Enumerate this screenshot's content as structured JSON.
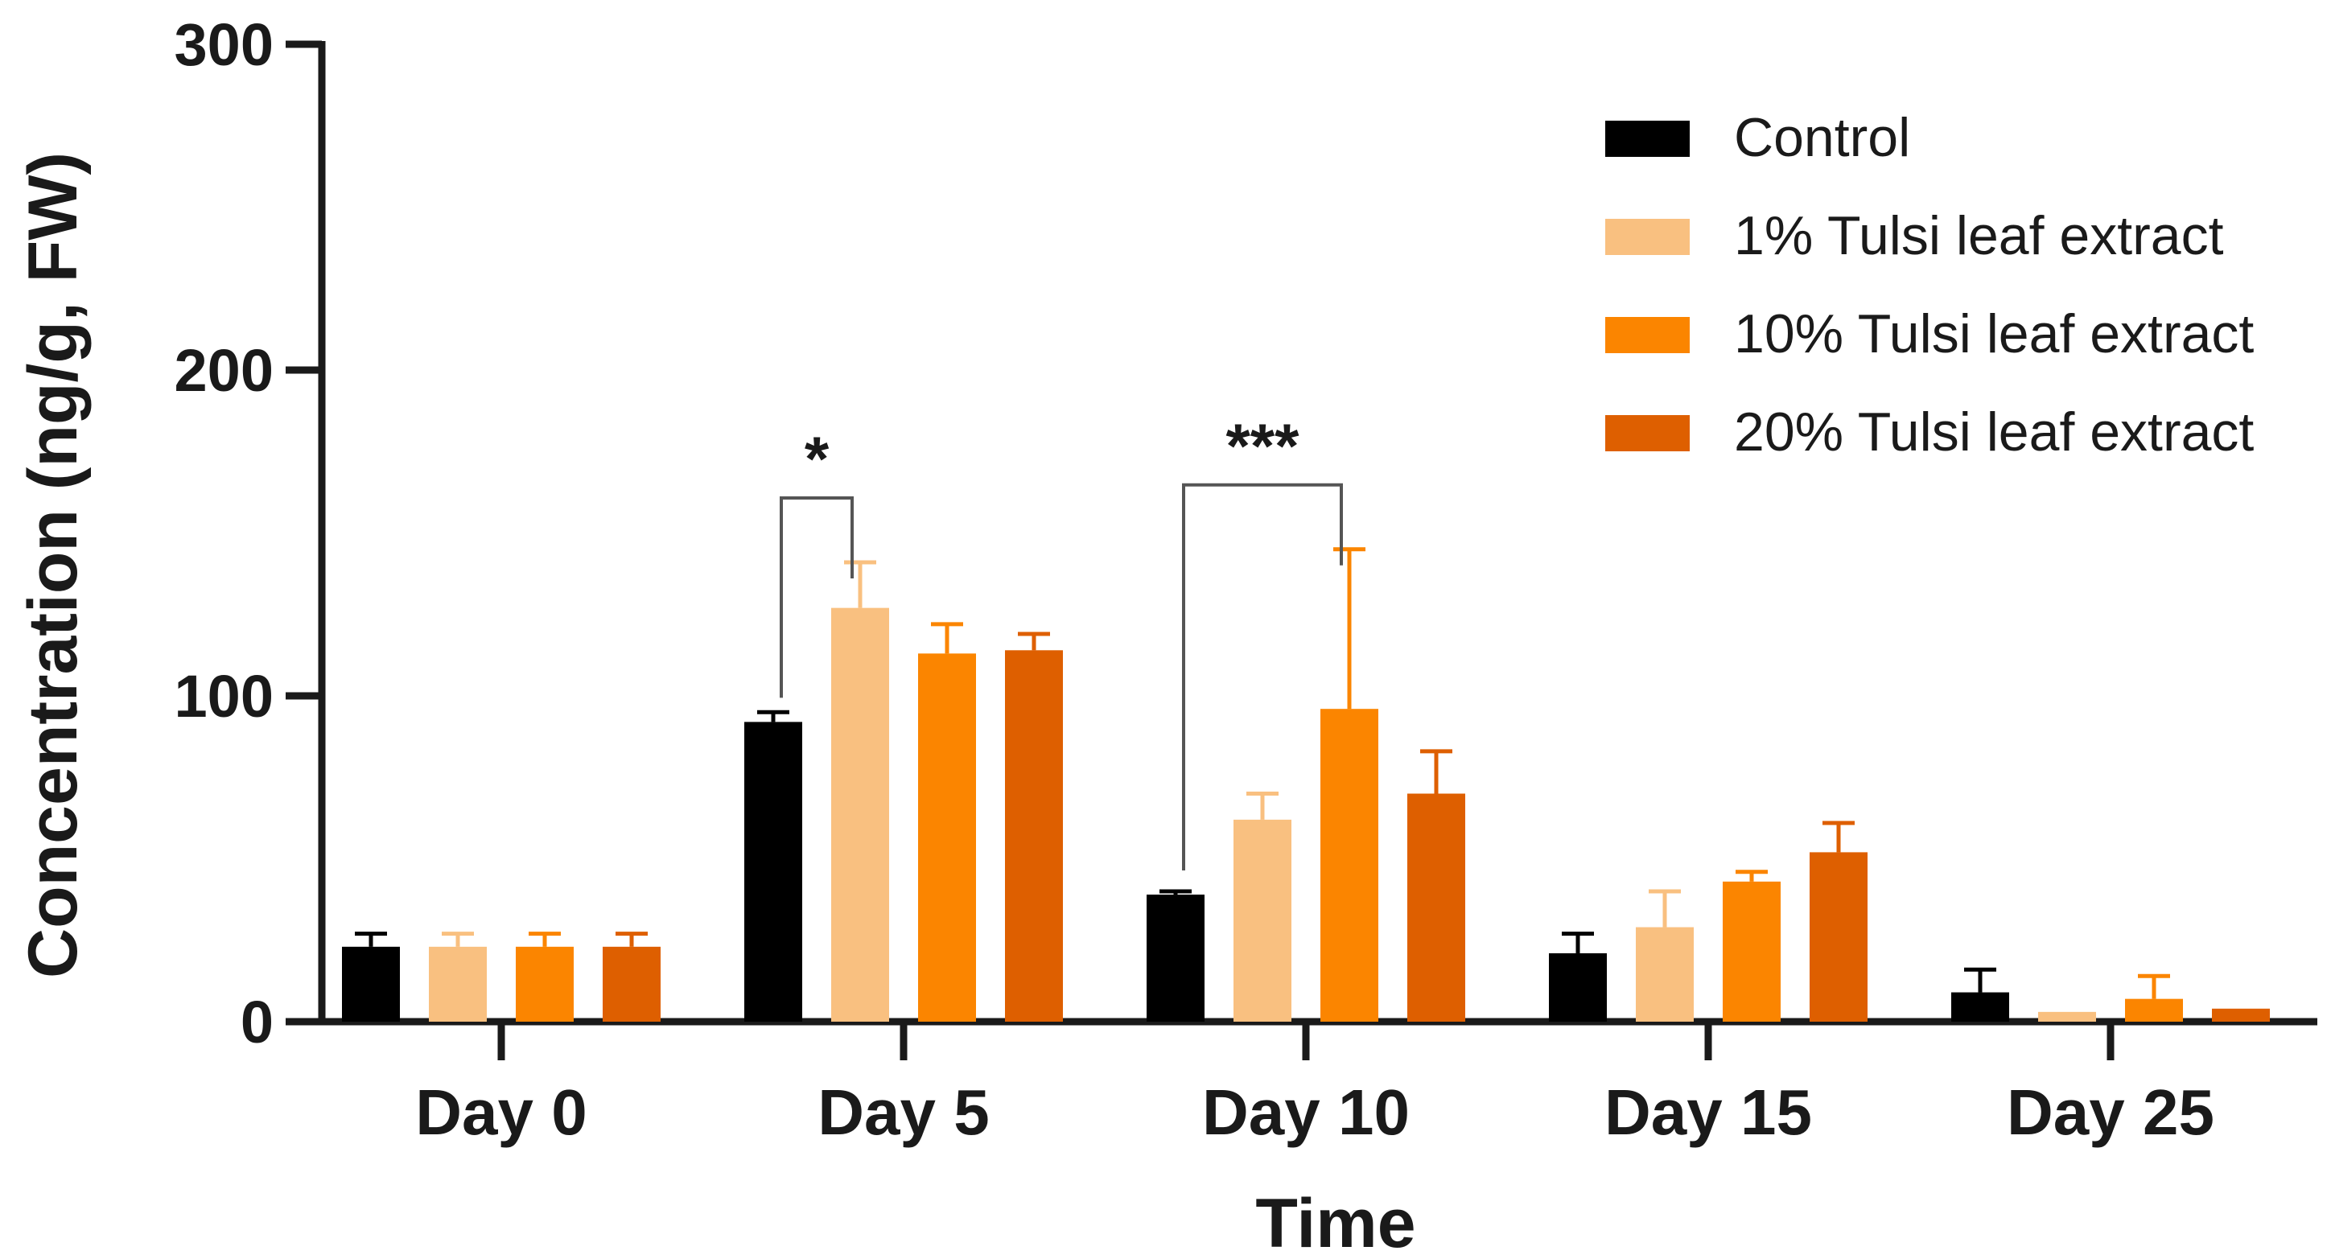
{
  "chart_data": {
    "type": "bar",
    "title": "",
    "xlabel": "Time",
    "ylabel": "Concentration (ng/g, FW)",
    "ylim": [
      0,
      300
    ],
    "yticks": [
      0,
      100,
      200,
      300
    ],
    "categories": [
      "Day 0",
      "Day 5",
      "Day 10",
      "Day 15",
      "Day 25"
    ],
    "legend_position": "top-right",
    "series": [
      {
        "name": "Control",
        "color": "#000000",
        "values": [
          23,
          92,
          39,
          21,
          9
        ],
        "errors": [
          4,
          3,
          1,
          6,
          7
        ]
      },
      {
        "name": "1% Tulsi leaf extract",
        "color": "#f9c080",
        "values": [
          23,
          127,
          62,
          29,
          3
        ],
        "errors": [
          4,
          14,
          8,
          11,
          0
        ]
      },
      {
        "name": "10% Tulsi leaf extract",
        "color": "#fb8500",
        "values": [
          23,
          113,
          96,
          43,
          7
        ],
        "errors": [
          4,
          9,
          49,
          3,
          7
        ]
      },
      {
        "name": "20% Tulsi leaf extract",
        "color": "#de5f00",
        "values": [
          23,
          114,
          70,
          52,
          4
        ],
        "errors": [
          4,
          5,
          13,
          9,
          0
        ]
      }
    ],
    "annotations": [
      {
        "text": "*",
        "category_index": 1,
        "from_series": 0,
        "to_series": 1
      },
      {
        "text": "***",
        "category_index": 2,
        "from_series": 0,
        "to_series": 2
      }
    ]
  }
}
